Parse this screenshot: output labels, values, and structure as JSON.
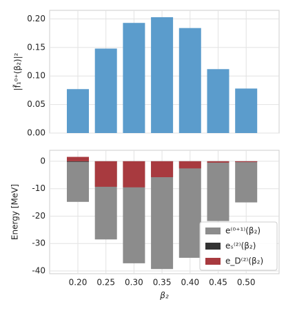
{
  "chart_data": [
    {
      "type": "bar",
      "ylabel": "|f̃₁⁰⁺(β₂)|²",
      "values": [
        0.077,
        0.148,
        0.193,
        0.203,
        0.184,
        0.112,
        0.078
      ],
      "color": "#5b9ccc",
      "ylim": [
        0,
        0.215
      ],
      "yticks": [
        {
          "value": 0,
          "label": "0.00"
        },
        {
          "value": 0.05,
          "label": "0.05"
        },
        {
          "value": 0.1,
          "label": "0.10"
        },
        {
          "value": 0.15,
          "label": "0.15"
        },
        {
          "value": 0.2,
          "label": "0.20"
        }
      ],
      "grid": true
    },
    {
      "type": "overlay_bar",
      "xlabel": "β₂",
      "ylabel": "Energy [MeV]",
      "categories": [
        "0.20",
        "0.25",
        "0.30",
        "0.35",
        "0.40",
        "0.45",
        "0.50"
      ],
      "series": [
        {
          "name": "e⁽⁰⁺¹⁾(β₂)",
          "color": "#8c8c8c",
          "values": [
            -14.8,
            -28.5,
            -37.2,
            -39.3,
            -35.2,
            -21.8,
            -15.0
          ]
        },
        {
          "name": "eₛ⁽²⁾(β₂)",
          "color": "#333333",
          "values": [
            -0.2,
            -0.2,
            -0.2,
            -0.2,
            -0.2,
            -0.2,
            -0.2
          ]
        },
        {
          "name": "e_D⁽²⁾(β₂)",
          "color": "#a83a3f",
          "values": [
            1.6,
            -9.3,
            -9.5,
            -5.8,
            -2.6,
            -0.5,
            -0.3
          ]
        }
      ],
      "ylim": [
        -41,
        4
      ],
      "yticks": [
        0,
        -10,
        -20,
        -30,
        -40
      ],
      "grid": true,
      "legend": "lower right"
    }
  ]
}
